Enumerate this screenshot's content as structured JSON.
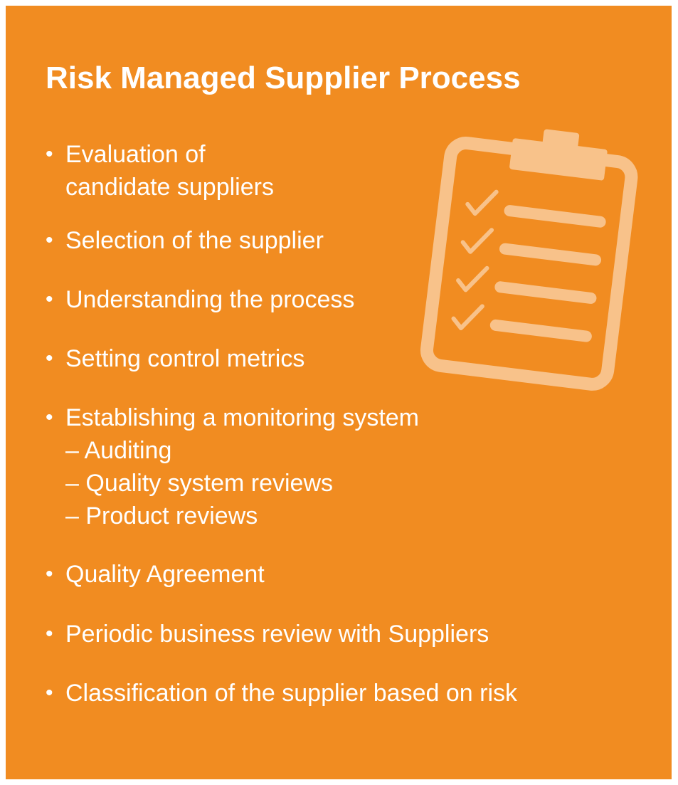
{
  "title": "Risk Managed Supplier Process",
  "bullet_char": "•",
  "sub_dash": "–",
  "items": [
    {
      "lines": [
        "Evaluation of",
        "candidate suppliers"
      ]
    },
    {
      "lines": [
        "Selection of the supplier"
      ]
    },
    {
      "lines": [
        "Understanding the process"
      ]
    },
    {
      "lines": [
        "Setting control metrics"
      ]
    },
    {
      "lines": [
        "Establishing a monitoring system"
      ],
      "subitems": [
        "Auditing",
        "Quality system reviews",
        "Product reviews"
      ]
    },
    {
      "lines": [
        "Quality Agreement"
      ]
    },
    {
      "lines": [
        "Periodic business review with Suppliers"
      ]
    },
    {
      "lines": [
        "Classification of the supplier based on risk"
      ]
    }
  ],
  "illustration": {
    "icon": "clipboard-checklist-icon",
    "checklist_rows": 4
  },
  "colors": {
    "background": "#f18c21",
    "text": "#ffffff",
    "icon": "#f8c28a"
  }
}
